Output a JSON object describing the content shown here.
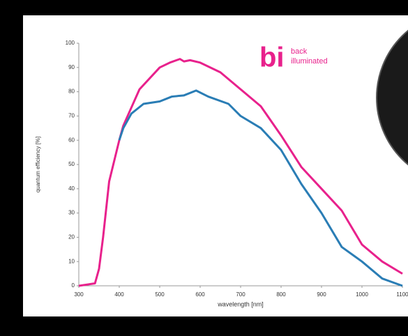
{
  "chart_data": {
    "type": "line",
    "x_label": "wavelength [nm]",
    "y_label": "quantum efficiency [%]",
    "annotations": [
      "bi",
      "back",
      "illuminated"
    ],
    "xlim": [
      300,
      1100
    ],
    "xticks": [
      300,
      400,
      500,
      600,
      700,
      800,
      900,
      1000,
      1100
    ],
    "ylim": [
      0,
      100
    ],
    "yticks": [
      0,
      10,
      20,
      30,
      40,
      50,
      60,
      70,
      80,
      90,
      100
    ],
    "grid": false,
    "series": [
      {
        "color": "#e8218c",
        "x": [
          300,
          340,
          350,
          360,
          375,
          400,
          410,
          450,
          500,
          525,
          550,
          560,
          575,
          600,
          650,
          700,
          750,
          800,
          850,
          900,
          950,
          1000,
          1050,
          1100
        ],
        "values": [
          0,
          1,
          7,
          20,
          43,
          60,
          66,
          81,
          90,
          92,
          93.5,
          92.5,
          93,
          92,
          88,
          81,
          74,
          62,
          49,
          40,
          31,
          17,
          10,
          5
        ]
      },
      {
        "color": "#2a7db5",
        "x": [
          400,
          410,
          430,
          460,
          500,
          530,
          560,
          590,
          620,
          670,
          700,
          750,
          800,
          850,
          900,
          950,
          1000,
          1050,
          1100
        ],
        "values": [
          60,
          65,
          71,
          75,
          76,
          78,
          78.5,
          80.5,
          78,
          75,
          70,
          65,
          56,
          42,
          30,
          16,
          10,
          3,
          0
        ]
      }
    ]
  }
}
